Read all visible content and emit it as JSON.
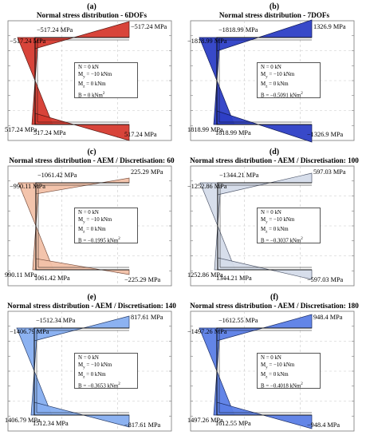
{
  "panels": [
    {
      "letter": "(a)",
      "title": "Normal stress distribution - 6DOFs",
      "fill": "#d63a2f",
      "stroke": "#5a1a14",
      "labels": {
        "top_left": "−517.24 MPa",
        "top_mid": "−517.24 MPa",
        "top_right": "−517.24 MPa",
        "bot_left": "517.24 MPa",
        "bot_mid": "517.24 MPa",
        "bot_right": "517.24 MPa"
      },
      "info": {
        "N": "N = 0 kN",
        "My": "M",
        "My_sub": "y",
        "My_val": " = −10 kNm",
        "Mz": "M",
        "Mz_sub": "z",
        "Mz_val": " = 0 kNm",
        "B": "B = 0 kNm",
        "B_sup": "2"
      }
    },
    {
      "letter": "(b)",
      "title": "Normal stress distribution - 7DOFs",
      "fill": "#2d3fc6",
      "stroke": "#101a55",
      "labels": {
        "top_left": "−1818.99 MPa",
        "top_mid": "−1818.99 MPa",
        "top_right": "1326.9 MPa",
        "bot_left": "1818.99 MPa",
        "bot_mid": "1818.99 MPa",
        "bot_right": "−1326.9 MPa"
      },
      "info": {
        "N": "N = 0 kN",
        "My": "M",
        "My_sub": "y",
        "My_val": " = −10 kNm",
        "Mz": "M",
        "Mz_sub": "z",
        "Mz_val": " = 0 kNm",
        "B": "B = −0.5091 kNm",
        "B_sup": "2"
      }
    },
    {
      "letter": "(c)",
      "title": "Normal stress distribution - AEM / Discretisation: 60",
      "fill": "#f2c1a8",
      "stroke": "#7a5040",
      "labels": {
        "top_left": "−990.11 MPa",
        "top_mid": "−1061.42 MPa",
        "top_right": "225.29 MPa",
        "bot_left": "990.11 MPa",
        "bot_mid": "1061.42 MPa",
        "bot_right": "−225.29 MPa"
      },
      "info": {
        "N": "N = 0 kN",
        "My": "M",
        "My_sub": "y",
        "My_val": " = −10 kNm",
        "Mz": "M",
        "Mz_sub": "z",
        "Mz_val": " = 0 kNm",
        "B": "B = −0.1995 kNm",
        "B_sup": "2"
      }
    },
    {
      "letter": "(d)",
      "title": "Normal stress distribution - AEM / Discretisation: 100",
      "fill": "#d5dcea",
      "stroke": "#555d70",
      "labels": {
        "top_left": "−1252.86 MPa",
        "top_mid": "−1344.21 MPa",
        "top_right": "597.03 MPa",
        "bot_left": "1252.86 MPa",
        "bot_mid": "1344.21 MPa",
        "bot_right": "−597.03 MPa"
      },
      "info": {
        "N": "N = 0 kN",
        "My": "M",
        "My_sub": "y",
        "My_val": " = −10 kNm",
        "Mz": "M",
        "Mz_sub": "z",
        "Mz_val": " = 0 kNm",
        "B": "B = −0.3037 kNm",
        "B_sup": "2"
      }
    },
    {
      "letter": "(e)",
      "title": "Normal stress distribution - AEM / Discretisation: 140",
      "fill": "#86aef0",
      "stroke": "#2a3f6b",
      "labels": {
        "top_left": "−1406.79 MPa",
        "top_mid": "−1512.34 MPa",
        "top_right": "817.61 MPa",
        "bot_left": "1406.79 MPa",
        "bot_mid": "1512.34 MPa",
        "bot_right": "−817.61 MPa"
      },
      "info": {
        "N": "N = 0 kN",
        "My": "M",
        "My_sub": "y",
        "My_val": " = −10 kNm",
        "Mz": "M",
        "Mz_sub": "z",
        "Mz_val": " = 0 kNm",
        "B": "B = −0.3653 kNm",
        "B_sup": "2"
      }
    },
    {
      "letter": "(f)",
      "title": "Normal stress distribution - AEM / Discretisation: 180",
      "fill": "#5b7ee6",
      "stroke": "#1d2e66",
      "labels": {
        "top_left": "−1497.26 MPa",
        "top_mid": "−1612.55 MPa",
        "top_right": "948.4 MPa",
        "bot_left": "1497.26 MPa",
        "bot_mid": "1612.55 MPa",
        "bot_right": "−948.4 MPa"
      },
      "info": {
        "N": "N = 0 kN",
        "My": "M",
        "My_sub": "y",
        "My_val": " = −10 kNm",
        "Mz": "M",
        "Mz_sub": "z",
        "Mz_val": " = 0 kNm",
        "B": "B = −0.4018 kNm",
        "B_sup": "2"
      }
    }
  ]
}
